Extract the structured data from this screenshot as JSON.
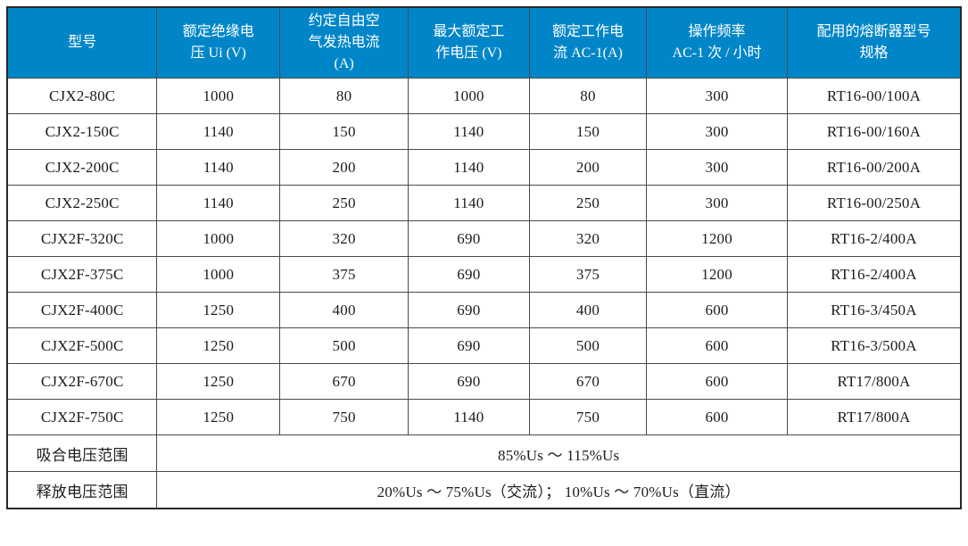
{
  "table": {
    "header_bg": "#0086C8",
    "header_text_color": "#ffffff",
    "body_text_color": "#1c1c1c",
    "border_color": "#4a4a4a",
    "columns": [
      "型号",
      "额定绝缘电\n压 Ui (V)",
      "约定自由空\n气发热电流\n(A)",
      "最大额定工\n作电压 (V)",
      "额定工作电\n流 AC-1(A)",
      "操作频率\nAC-1 次 / 小时",
      "配用的熔断器型号\n规格"
    ],
    "rows": [
      [
        "CJX2-80C",
        "1000",
        "80",
        "1000",
        "80",
        "300",
        "RT16-00/100A"
      ],
      [
        "CJX2-150C",
        "1140",
        "150",
        "1140",
        "150",
        "300",
        "RT16-00/160A"
      ],
      [
        "CJX2-200C",
        "1140",
        "200",
        "1140",
        "200",
        "300",
        "RT16-00/200A"
      ],
      [
        "CJX2-250C",
        "1140",
        "250",
        "1140",
        "250",
        "300",
        "RT16-00/250A"
      ],
      [
        "CJX2F-320C",
        "1000",
        "320",
        "690",
        "320",
        "1200",
        "RT16-2/400A"
      ],
      [
        "CJX2F-375C",
        "1000",
        "375",
        "690",
        "375",
        "1200",
        "RT16-2/400A"
      ],
      [
        "CJX2F-400C",
        "1250",
        "400",
        "690",
        "400",
        "600",
        "RT16-3/450A"
      ],
      [
        "CJX2F-500C",
        "1250",
        "500",
        "690",
        "500",
        "600",
        "RT16-3/500A"
      ],
      [
        "CJX2F-670C",
        "1250",
        "670",
        "690",
        "670",
        "600",
        "RT17/800A"
      ],
      [
        "CJX2F-750C",
        "1250",
        "750",
        "1140",
        "750",
        "600",
        "RT17/800A"
      ]
    ],
    "footer_rows": [
      {
        "label": "吸合电压范围",
        "value": "85%Us ～ 115%Us"
      },
      {
        "label": "释放电压范围",
        "value": "20%Us ～ 75%Us（交流）； 10%Us ～ 70%Us（直流）"
      }
    ]
  }
}
